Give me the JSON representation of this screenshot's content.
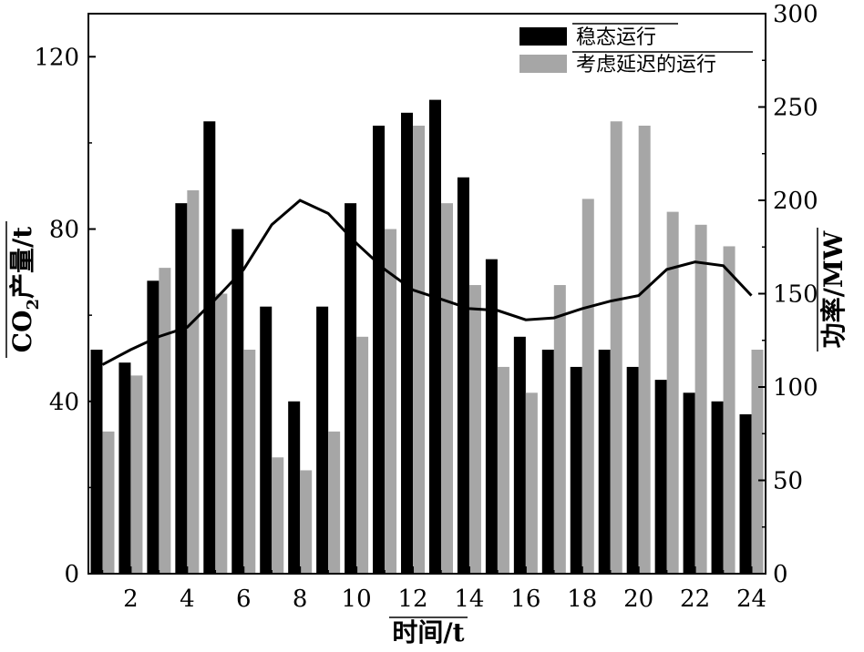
{
  "chart_data": {
    "type": "bar",
    "categories": [
      1,
      2,
      3,
      4,
      5,
      6,
      7,
      8,
      9,
      10,
      11,
      12,
      13,
      14,
      15,
      16,
      17,
      18,
      19,
      20,
      21,
      22,
      23,
      24
    ],
    "x_tick_labels": [
      "2",
      "4",
      "6",
      "8",
      "10",
      "12",
      "14",
      "16",
      "18",
      "20",
      "22",
      "24"
    ],
    "x_tick_values": [
      2,
      4,
      6,
      8,
      10,
      12,
      14,
      16,
      18,
      20,
      22,
      24
    ],
    "xlim": [
      0.5,
      24.5
    ],
    "ylim_left": [
      0,
      130
    ],
    "ylim_right": [
      0,
      300
    ],
    "yticks_left": [
      0,
      40,
      80,
      120
    ],
    "yticks_right": [
      0,
      50,
      100,
      150,
      200,
      250,
      300
    ],
    "xlabel": "时间/t",
    "ylabel_left_prefix": "CO",
    "ylabel_left_subscript": "2",
    "ylabel_left_suffix": "产量/t",
    "ylabel_right": "功率/MW",
    "legend_position": "top-right",
    "series": [
      {
        "name": "稳态运行",
        "color": "#000000",
        "axis": "left",
        "values": [
          52,
          49,
          68,
          86,
          105,
          80,
          62,
          40,
          62,
          86,
          104,
          107,
          110,
          92,
          73,
          55,
          52,
          48,
          52,
          48,
          45,
          42,
          40,
          37
        ]
      },
      {
        "name": "考虑延迟的运行",
        "color": "#a6a6a6",
        "axis": "left",
        "values": [
          33,
          46,
          71,
          89,
          65,
          52,
          27,
          24,
          33,
          55,
          80,
          104,
          86,
          67,
          48,
          42,
          67,
          87,
          105,
          104,
          84,
          81,
          76,
          52
        ]
      },
      {
        "name": "",
        "type": "line",
        "color": "#000000",
        "axis": "right",
        "values": [
          112,
          120,
          127,
          132,
          147,
          163,
          187,
          200,
          193,
          177,
          163,
          152,
          147,
          142,
          141,
          136,
          137,
          142,
          146,
          149,
          163,
          167,
          165,
          149
        ]
      }
    ]
  }
}
